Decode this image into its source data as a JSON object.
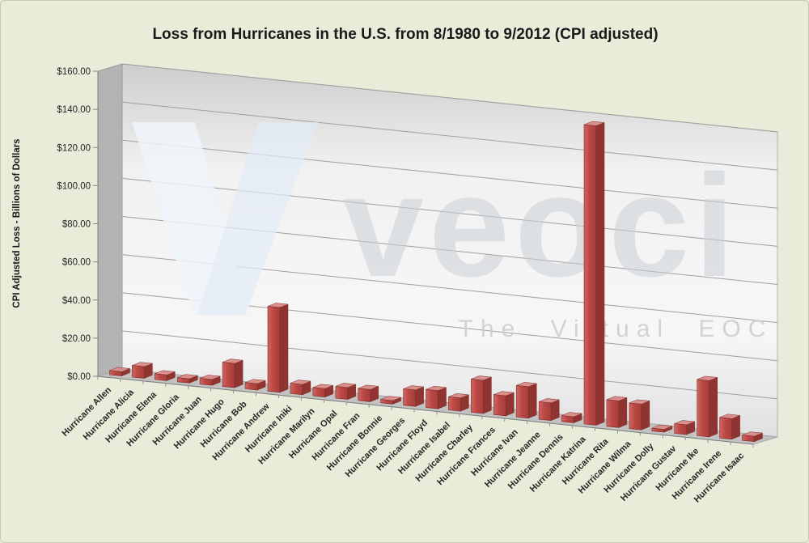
{
  "title": "Loss from Hurricanes in the U.S. from 8/1980 to 9/2012 (CPI adjusted)",
  "watermark": {
    "brand": "veoci",
    "tagline": "The Virtual EOC"
  },
  "chart_data": {
    "type": "bar",
    "style": "3d-column",
    "title": "Loss from Hurricanes in the U.S. from 8/1980 to 9/2012 (CPI adjusted)",
    "xlabel": "",
    "ylabel": "CPI Adjusted Loss  - Billions of Dollars",
    "ylim": [
      0,
      160
    ],
    "ytick_step": 20,
    "ytick_labels": [
      "$0.00",
      "$20.00",
      "$40.00",
      "$60.00",
      "$80.00",
      "$100.00",
      "$120.00",
      "$140.00",
      "$160.00"
    ],
    "grid": true,
    "legend": "none",
    "bar_color": "#bf4b47",
    "categories": [
      "Hurricane Allen",
      "Hurricane Alicia",
      "Hurricane Elena",
      "Hurricane Gloria",
      "Hurricane Juan",
      "Hurricane Hugo",
      "Hurricane Bob",
      "Hurricane Andrew",
      "Hurricane Iniki",
      "Hurricane Marilyn",
      "Hurricane Opal",
      "Hurricane Fran",
      "Hurricane Bonnie",
      "Hurricane Georges",
      "Hurricane Floyd",
      "Hurricane Isabel",
      "Hurricane Charley",
      "Hurricane Frances",
      "Hurricane Ivan",
      "Hurricane Jeanne",
      "Hurricane Dennis",
      "Hurricane Katrina",
      "Hurricane Rita",
      "Hurricane Wilma",
      "Hurricane Dolly",
      "Hurricane Gustav",
      "Hurricane Ike",
      "Hurricane Irene",
      "Hurricane Isaac"
    ],
    "values": [
      2.2,
      6.1,
      3.0,
      2.2,
      3.1,
      12.7,
      3.3,
      44.5,
      5.4,
      4.4,
      6.2,
      6.4,
      1.8,
      8.6,
      9.5,
      6.9,
      17.4,
      10.5,
      16.5,
      9.2,
      3.2,
      157.0,
      14.0,
      13.5,
      1.5,
      5.1,
      29.5,
      10.8,
      2.8
    ]
  },
  "colors": {
    "background": "#e8ecd9",
    "bar_front": "#bf4b47",
    "bar_top": "#d9908c",
    "bar_side": "#8f3431",
    "wall": "#f2f2f2",
    "side_wall": "#b3b3b3",
    "floor": "#c2c2c2",
    "gridline": "#9f9f9f",
    "axis": "#7f7f7f",
    "title_text": "#1a1a1a",
    "label_text": "#262626"
  }
}
